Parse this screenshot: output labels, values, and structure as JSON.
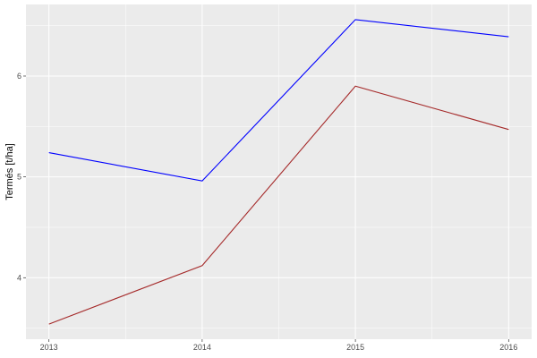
{
  "chart_data": {
    "type": "line",
    "title": "",
    "xlabel": "",
    "ylabel": "Termés [t/ha]",
    "x": [
      2013,
      2014,
      2015,
      2016
    ],
    "xticks": [
      "2013",
      "2014",
      "2015",
      "2016"
    ],
    "yticks": [
      "4",
      "5",
      "6"
    ],
    "ylim": [
      3.39,
      6.71
    ],
    "xlim": [
      2012.85,
      2016.15
    ],
    "grid": true,
    "legend": "none",
    "series": [
      {
        "color": "#0000ff",
        "values": [
          5.24,
          4.96,
          6.56,
          6.39
        ]
      },
      {
        "color": "#a52a2a",
        "values": [
          3.54,
          4.12,
          5.9,
          5.47
        ]
      }
    ]
  }
}
